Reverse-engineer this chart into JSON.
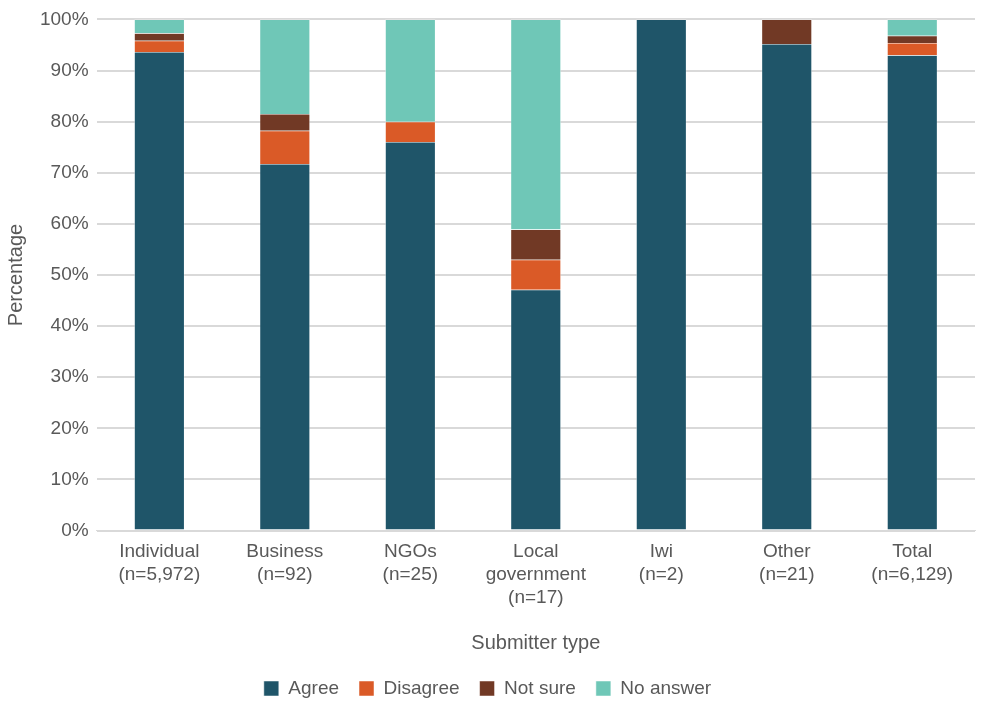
{
  "chart_data": {
    "type": "bar",
    "stacked": true,
    "xlabel": "Submitter type",
    "ylabel": "Percentage",
    "categories": [
      "Individual\n(n=5,972)",
      "Business\n(n=92)",
      "NGOs\n(n=25)",
      "Local\ngovernment\n(n=17)",
      "Iwi\n(n=2)",
      "Other\n(n=21)",
      "Total\n(n=6,129)"
    ],
    "series": [
      {
        "name": "Agree",
        "color": "#1f5569",
        "values": [
          93.6,
          71.7,
          76,
          47.1,
          100,
          95.2,
          93.0
        ]
      },
      {
        "name": "Disagree",
        "color": "#da5a27",
        "values": [
          2.2,
          6.5,
          4,
          5.9,
          0,
          0,
          2.4
        ]
      },
      {
        "name": "Not sure",
        "color": "#713925",
        "values": [
          1.5,
          3.3,
          0,
          5.9,
          0,
          4.8,
          1.4
        ]
      },
      {
        "name": "No answer",
        "color": "#6fc7b7",
        "values": [
          2.7,
          18.5,
          20,
          41.1,
          0,
          0,
          3.2
        ]
      }
    ],
    "ylim": [
      0,
      100
    ],
    "yticks": [
      {
        "value": 0,
        "label": "0%"
      },
      {
        "value": 10,
        "label": "10%"
      },
      {
        "value": 20,
        "label": "20%"
      },
      {
        "value": 30,
        "label": "30%"
      },
      {
        "value": 40,
        "label": "40%"
      },
      {
        "value": 50,
        "label": "50%"
      },
      {
        "value": 60,
        "label": "60%"
      },
      {
        "value": 70,
        "label": "70%"
      },
      {
        "value": 80,
        "label": "80%"
      },
      {
        "value": 90,
        "label": "90%"
      },
      {
        "value": 100,
        "label": "100%"
      }
    ],
    "grid": "y",
    "legend": "bottom"
  }
}
